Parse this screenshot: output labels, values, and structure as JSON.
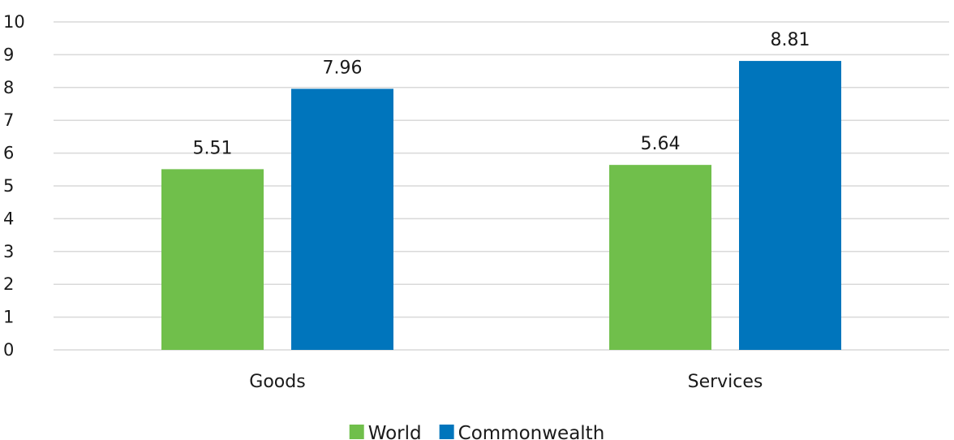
{
  "chart_data": {
    "type": "bar",
    "title": "",
    "xlabel": "",
    "ylabel": "",
    "categories": [
      "Goods",
      "Services"
    ],
    "series": [
      {
        "name": "World",
        "values": [
          5.51,
          5.64
        ],
        "color": "#70bf4b"
      },
      {
        "name": "Commonwealth",
        "values": [
          7.96,
          8.81
        ],
        "color": "#0075bc"
      }
    ],
    "ylim": [
      0,
      10
    ],
    "yticks": [
      0,
      1,
      2,
      3,
      4,
      5,
      6,
      7,
      8,
      9,
      10
    ],
    "grid": true,
    "legend_position": "bottom",
    "data_labels": true
  }
}
